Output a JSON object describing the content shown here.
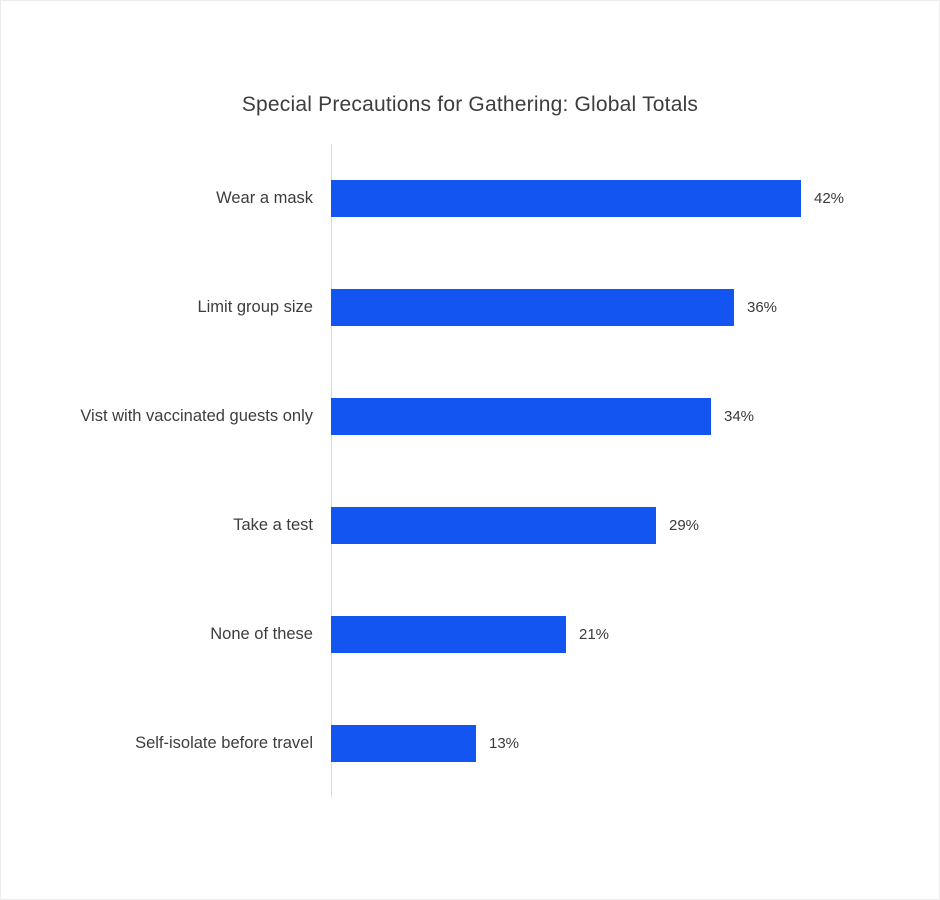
{
  "chart_data": {
    "type": "bar",
    "orientation": "horizontal",
    "title": "Special Precautions for Gathering: Global Totals",
    "categories": [
      "Wear a mask",
      "Limit group size",
      "Vist with vaccinated guests only",
      "Take a test",
      "None of these",
      "Self-isolate before travel"
    ],
    "values": [
      42,
      36,
      34,
      29,
      21,
      13
    ],
    "value_labels": [
      "42%",
      "36%",
      "34%",
      "29%",
      "21%",
      "13%"
    ],
    "xlabel": "",
    "ylabel": "",
    "xlim": [
      0,
      45
    ],
    "grid": false,
    "legend": "none",
    "bar_color": "#1355f0",
    "axis_line_color": "#d9d9d9",
    "text_color": "#3d3d3d"
  }
}
